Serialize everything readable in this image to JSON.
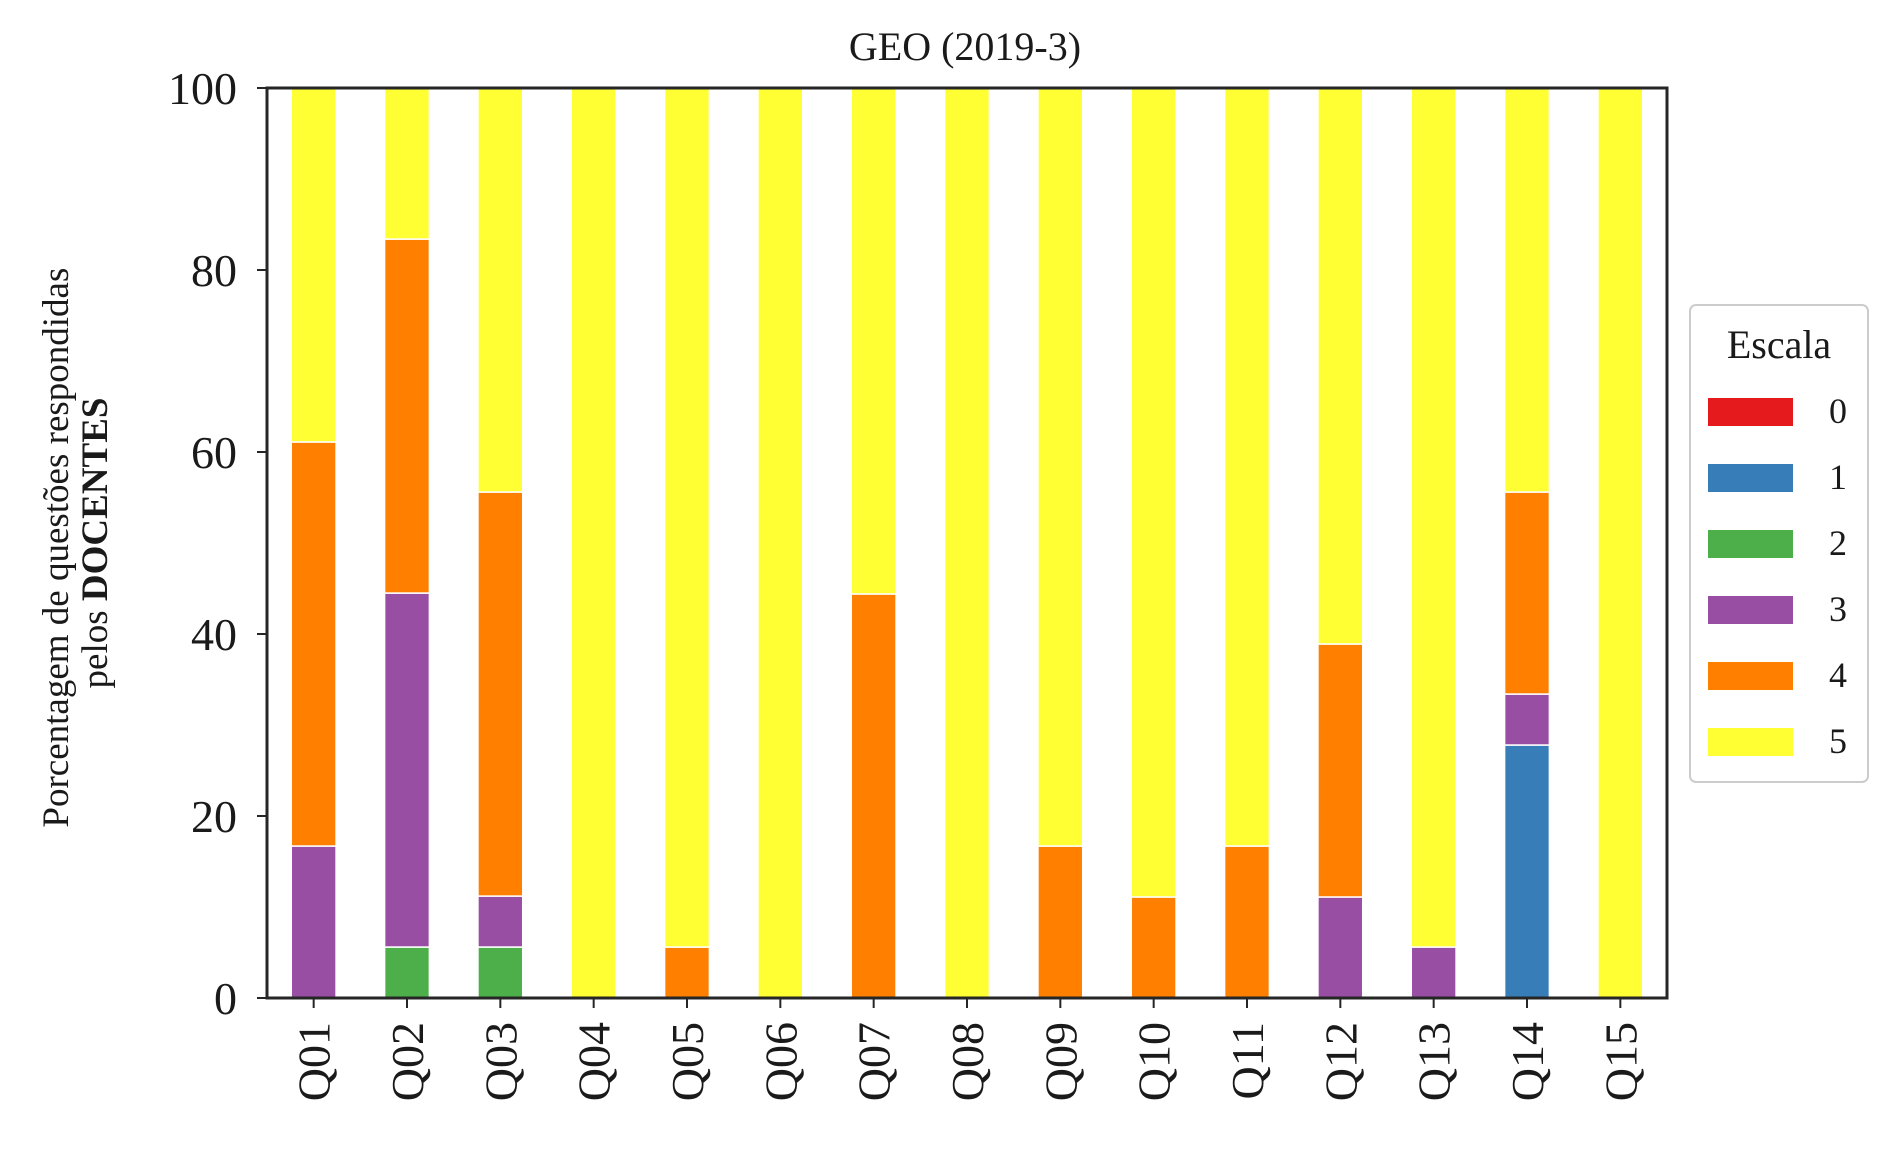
{
  "chart_data": {
    "type": "bar",
    "stacked": true,
    "title": "GEO (2019-3)",
    "ylabel_line1": "Porcentagem de questões respondidas",
    "ylabel_line2_prefix": "pelos ",
    "ylabel_line2_bold": "DOCENTES",
    "xlabel": "",
    "ylim": [
      0,
      100
    ],
    "yticks": [
      0,
      20,
      40,
      60,
      80,
      100
    ],
    "grid": false,
    "legend_title": "Escala",
    "legend_position": "right",
    "categories": [
      "Q01",
      "Q02",
      "Q03",
      "Q04",
      "Q05",
      "Q06",
      "Q07",
      "Q08",
      "Q09",
      "Q10",
      "Q11",
      "Q12",
      "Q13",
      "Q14",
      "Q15"
    ],
    "series": [
      {
        "name": "0",
        "color": "#e41a1c",
        "values": [
          0,
          0,
          0,
          0,
          0,
          0,
          0,
          0,
          0,
          0,
          0,
          0,
          0,
          0,
          0
        ]
      },
      {
        "name": "1",
        "color": "#377eb8",
        "values": [
          0,
          0,
          0,
          0,
          0,
          0,
          0,
          0,
          0,
          0,
          0,
          0,
          0,
          27.8,
          0
        ]
      },
      {
        "name": "2",
        "color": "#4daf4a",
        "values": [
          0,
          5.6,
          5.6,
          0,
          0,
          0,
          0,
          0,
          0,
          0,
          0,
          0,
          0,
          0,
          0
        ]
      },
      {
        "name": "3",
        "color": "#984ea3",
        "values": [
          16.7,
          38.9,
          5.6,
          0,
          0,
          0,
          0,
          0,
          0,
          0,
          0,
          11.1,
          5.6,
          5.6,
          0
        ]
      },
      {
        "name": "4",
        "color": "#ff7f00",
        "values": [
          44.4,
          38.9,
          44.4,
          0,
          5.6,
          0,
          44.4,
          0,
          16.7,
          11.1,
          16.7,
          27.8,
          0,
          22.2,
          0
        ]
      },
      {
        "name": "5",
        "color": "#ffff33",
        "values": [
          38.9,
          16.7,
          44.4,
          100,
          94.4,
          100,
          55.6,
          100,
          83.3,
          88.9,
          83.3,
          61.1,
          94.4,
          44.4,
          100
        ]
      }
    ]
  }
}
